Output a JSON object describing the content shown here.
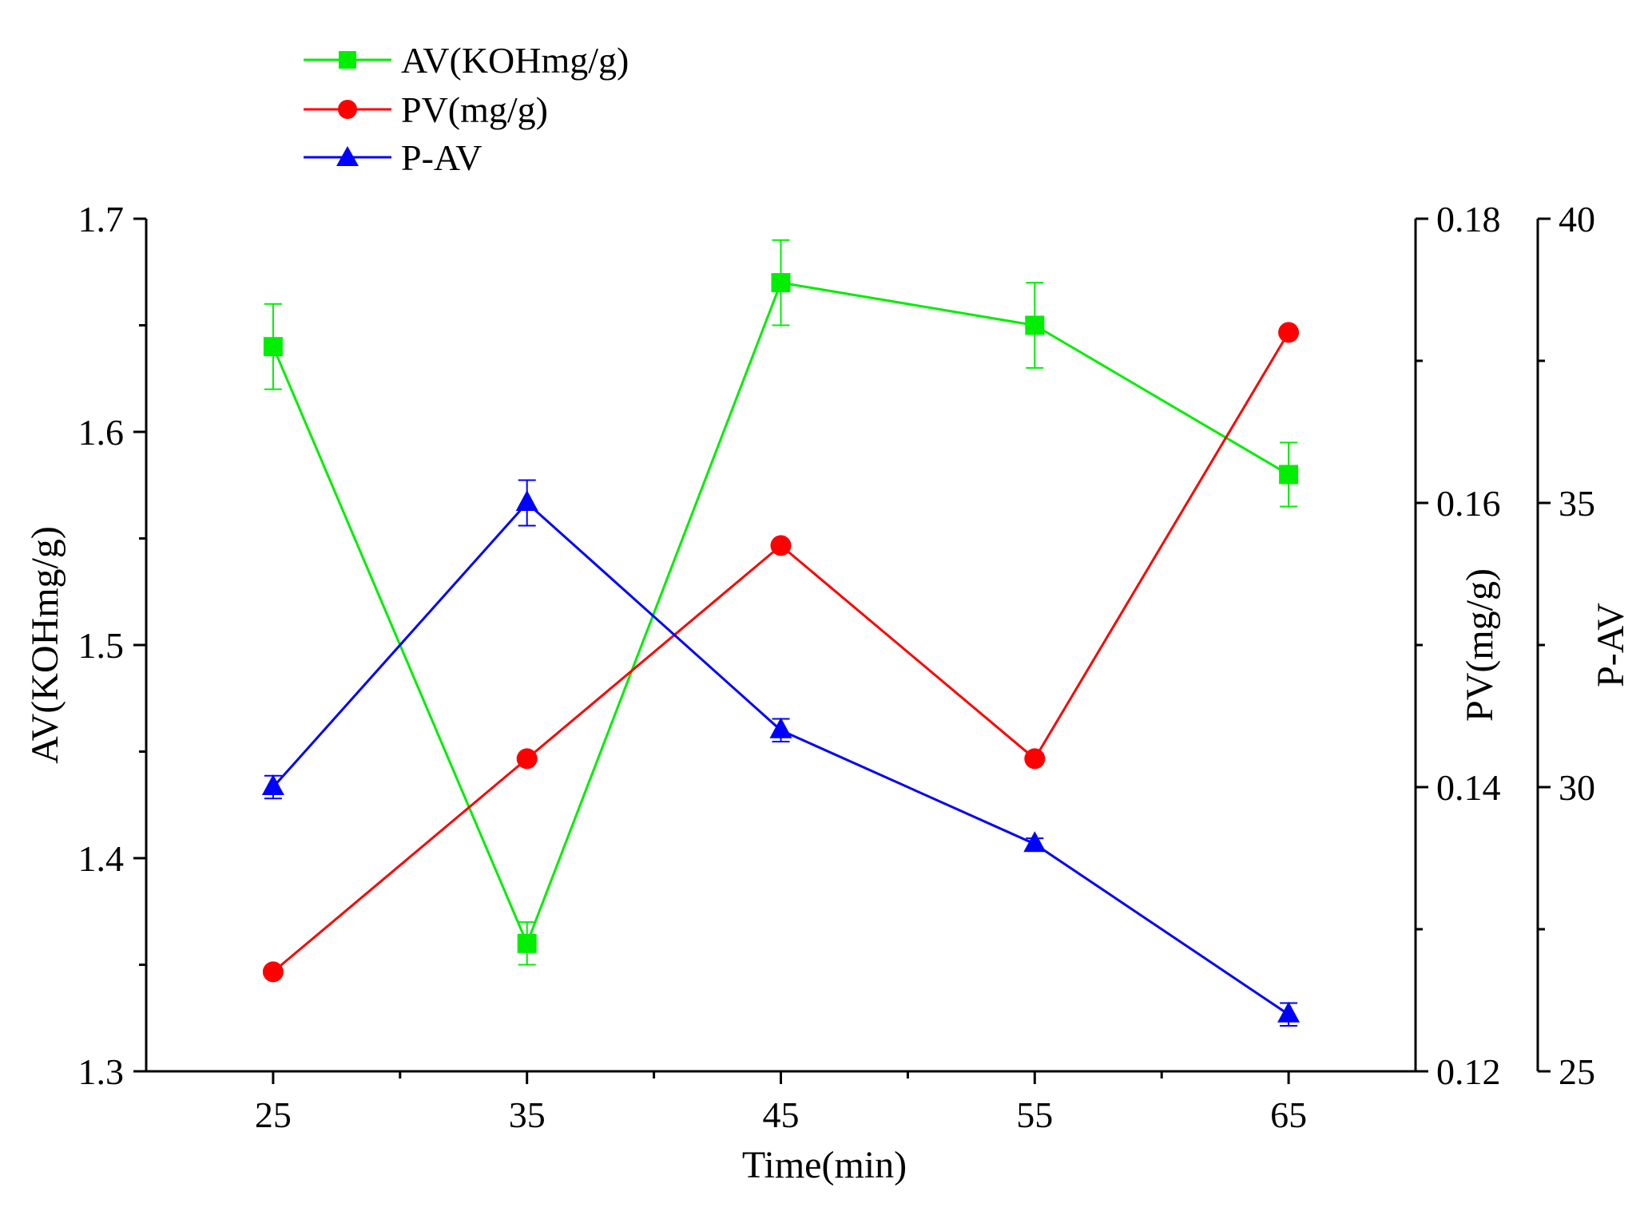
{
  "chart_data": {
    "type": "line",
    "title": "",
    "xlabel": "Time(min)",
    "x": [
      25,
      35,
      45,
      55,
      65
    ],
    "xlim": [
      20,
      70
    ],
    "xticks": [
      25,
      35,
      45,
      55,
      65
    ],
    "grid": false,
    "legend_position": "top-left (above plot)",
    "axes": {
      "left": {
        "label": "AV(KOHmg/g)",
        "lim": [
          1.3,
          1.7
        ],
        "ticks": [
          1.3,
          1.4,
          1.5,
          1.6,
          1.7
        ],
        "tick_labels": [
          "1.3",
          "1.4",
          "1.5",
          "1.6",
          "1.7"
        ]
      },
      "right1": {
        "label": "PV(mg/g)",
        "lim": [
          0.12,
          0.18
        ],
        "ticks": [
          0.12,
          0.14,
          0.16,
          0.18
        ],
        "tick_labels": [
          "0.12",
          "0.14",
          "0.16",
          "0.18"
        ]
      },
      "right2": {
        "label": "P-AV",
        "lim": [
          25,
          40
        ],
        "ticks": [
          25,
          30,
          35,
          40
        ],
        "tick_labels": [
          "25",
          "30",
          "35",
          "40"
        ]
      }
    },
    "series": [
      {
        "name": "AV(KOHmg/g)",
        "axis": "left",
        "color": "#00ee00",
        "marker": "square",
        "values": [
          1.64,
          1.36,
          1.67,
          1.65,
          1.58
        ],
        "errors": [
          0.02,
          0.01,
          0.02,
          0.02,
          0.015
        ]
      },
      {
        "name": "PV(mg/g)",
        "axis": "right1",
        "color": "#ff0000",
        "marker": "circle",
        "values": [
          0.127,
          0.142,
          0.157,
          0.142,
          0.172
        ],
        "errors": [
          0,
          0,
          0,
          0,
          0
        ]
      },
      {
        "name": "P-AV",
        "axis": "right2",
        "color": "#0000ff",
        "marker": "triangle",
        "values": [
          30.0,
          35.0,
          31.0,
          29.0,
          26.0
        ],
        "errors": [
          0.2,
          0.4,
          0.2,
          0.1,
          0.2
        ]
      }
    ]
  }
}
